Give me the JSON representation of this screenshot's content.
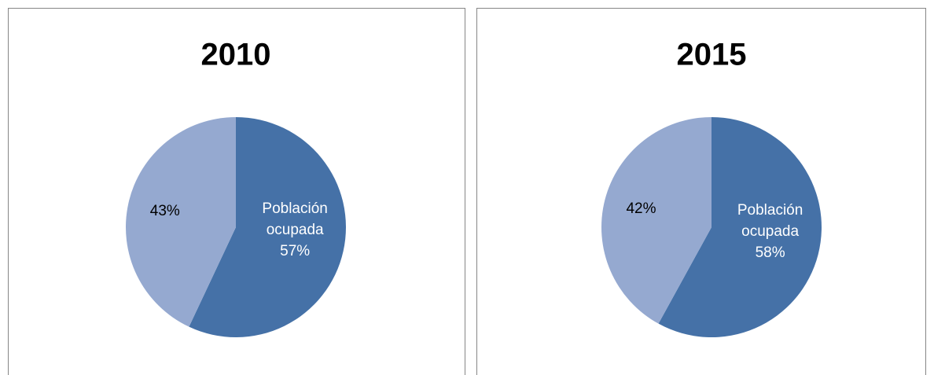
{
  "chart_data": [
    {
      "type": "pie",
      "title": "2010",
      "categories": [
        "Población ocupada",
        null
      ],
      "values": [
        57,
        43
      ],
      "value_labels": [
        "57%",
        "43%"
      ],
      "colors": [
        "#4571a7",
        "#95a9d0"
      ],
      "label_colors": [
        "#ffffff",
        "#000000"
      ]
    },
    {
      "type": "pie",
      "title": "2015",
      "categories": [
        "Población ocupada",
        null
      ],
      "values": [
        58,
        42
      ],
      "value_labels": [
        "58%",
        "42%"
      ],
      "colors": [
        "#4571a7",
        "#95a9d0"
      ],
      "label_colors": [
        "#ffffff",
        "#000000"
      ]
    }
  ]
}
